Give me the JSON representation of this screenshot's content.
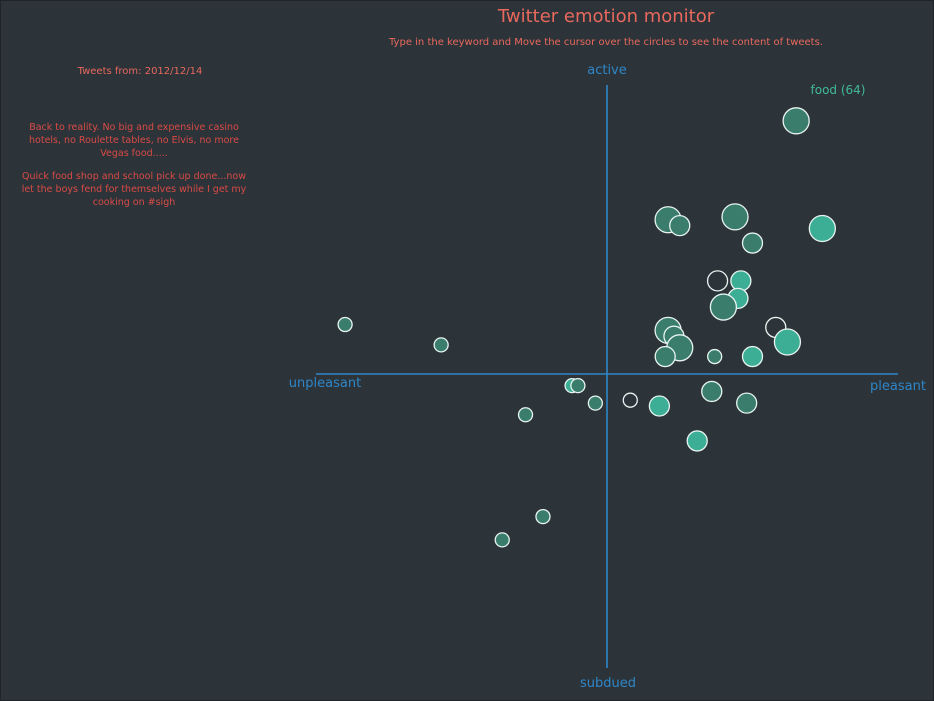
{
  "header": {
    "title": "Twitter emotion monitor",
    "subtitle": "Type in the keyword and Move the cursor over the circles to see the content of tweets."
  },
  "sidebar": {
    "date_label": "Tweets from: 2012/12/14",
    "tweets": [
      "Back to reality. No big and expensive casino hotels, no Roulette tables, no Elvis, no more Vegas food.....",
      "Quick food shop and school pick up done...now let the boys fend for themselves while I get my cooking on #sigh"
    ]
  },
  "colors": {
    "background": "#2c343a",
    "title": "#e9685d",
    "tweet_text": "#d94a45",
    "axis": "#2f86c8",
    "keyword": "#41b89a",
    "circle_fill": "#3a7d6c",
    "circle_fill_bright": "#3cae95",
    "circle_stroke": "#e8f4f0"
  },
  "chart_data": {
    "type": "scatter",
    "title": "",
    "axes": {
      "x_positive": "pleasant",
      "x_negative": "unpleasant",
      "y_positive": "active",
      "y_negative": "subdued"
    },
    "xlim": [
      -1,
      1
    ],
    "ylim": [
      -1,
      1
    ],
    "keyword": "food (64)",
    "points": [
      {
        "x": 0.65,
        "y": 0.87,
        "size": 3,
        "style": "dark"
      },
      {
        "x": 0.74,
        "y": 0.5,
        "size": 3,
        "style": "bright"
      },
      {
        "x": 0.21,
        "y": 0.53,
        "size": 3,
        "style": "dark"
      },
      {
        "x": 0.25,
        "y": 0.51,
        "size": 2,
        "style": "dark"
      },
      {
        "x": 0.44,
        "y": 0.54,
        "size": 3,
        "style": "dark"
      },
      {
        "x": 0.5,
        "y": 0.45,
        "size": 2,
        "style": "dark"
      },
      {
        "x": 0.38,
        "y": 0.32,
        "size": 2,
        "style": "hollow"
      },
      {
        "x": 0.46,
        "y": 0.32,
        "size": 2,
        "style": "bright"
      },
      {
        "x": 0.45,
        "y": 0.26,
        "size": 2,
        "style": "bright"
      },
      {
        "x": 0.4,
        "y": 0.23,
        "size": 3,
        "style": "dark"
      },
      {
        "x": 0.58,
        "y": 0.16,
        "size": 2,
        "style": "hollow"
      },
      {
        "x": 0.62,
        "y": 0.11,
        "size": 3,
        "style": "bright"
      },
      {
        "x": 0.21,
        "y": 0.15,
        "size": 3,
        "style": "dark"
      },
      {
        "x": 0.23,
        "y": 0.13,
        "size": 2,
        "style": "dark"
      },
      {
        "x": 0.25,
        "y": 0.09,
        "size": 3,
        "style": "dark"
      },
      {
        "x": 0.2,
        "y": 0.06,
        "size": 2,
        "style": "dark"
      },
      {
        "x": 0.37,
        "y": 0.06,
        "size": 1,
        "style": "dark"
      },
      {
        "x": 0.5,
        "y": 0.06,
        "size": 2,
        "style": "bright"
      },
      {
        "x": -0.9,
        "y": 0.17,
        "size": 1,
        "style": "dark"
      },
      {
        "x": -0.57,
        "y": 0.1,
        "size": 1,
        "style": "dark"
      },
      {
        "x": -0.12,
        "y": -0.04,
        "size": 1,
        "style": "bright"
      },
      {
        "x": -0.1,
        "y": -0.04,
        "size": 1,
        "style": "dark"
      },
      {
        "x": 0.36,
        "y": -0.06,
        "size": 2,
        "style": "dark"
      },
      {
        "x": 0.08,
        "y": -0.09,
        "size": 1,
        "style": "hollow"
      },
      {
        "x": -0.04,
        "y": -0.1,
        "size": 1,
        "style": "dark"
      },
      {
        "x": 0.18,
        "y": -0.11,
        "size": 2,
        "style": "bright"
      },
      {
        "x": 0.48,
        "y": -0.1,
        "size": 2,
        "style": "dark"
      },
      {
        "x": -0.28,
        "y": -0.14,
        "size": 1,
        "style": "dark"
      },
      {
        "x": 0.31,
        "y": -0.23,
        "size": 2,
        "style": "bright"
      },
      {
        "x": -0.22,
        "y": -0.49,
        "size": 1,
        "style": "dark"
      },
      {
        "x": -0.36,
        "y": -0.57,
        "size": 1,
        "style": "dark"
      }
    ]
  }
}
